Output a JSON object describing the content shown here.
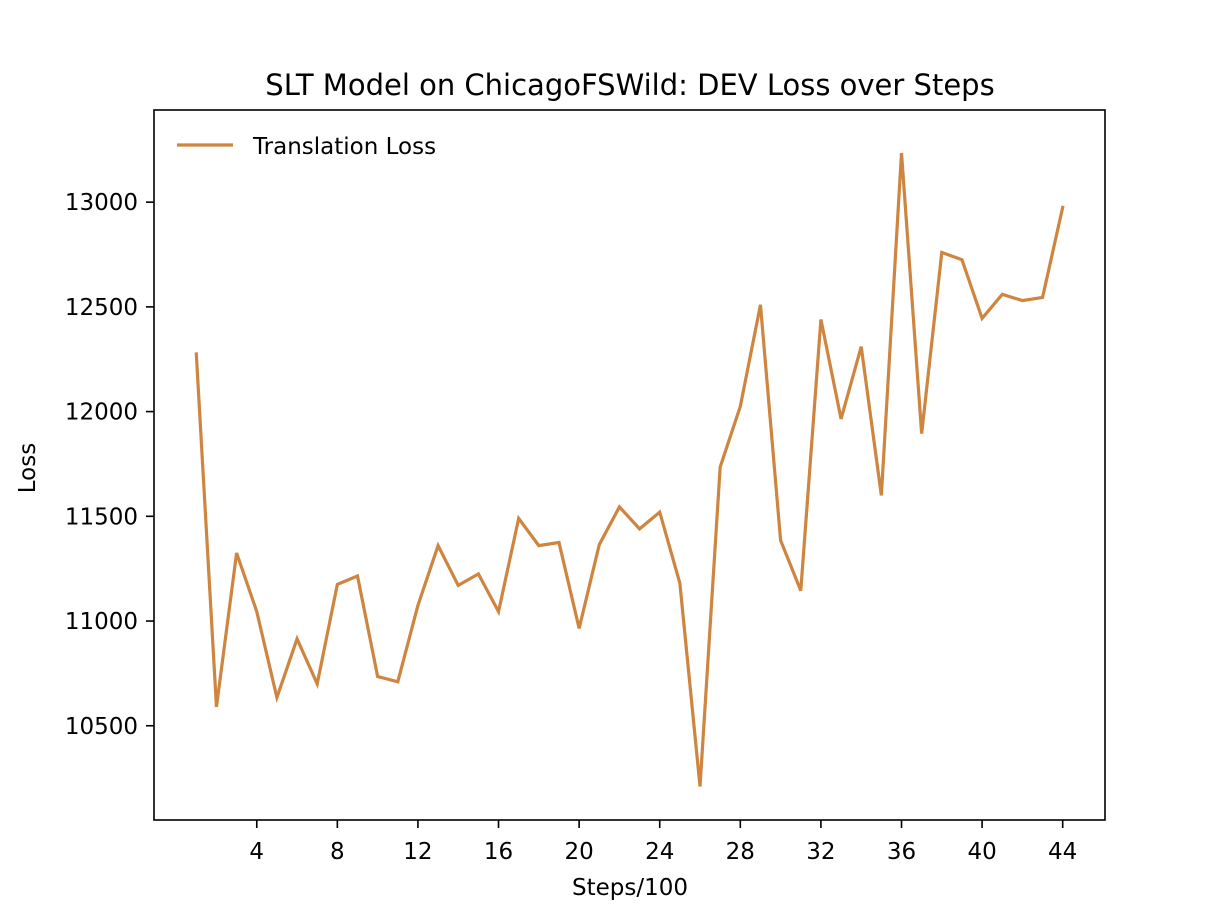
{
  "chart_data": {
    "type": "line",
    "title": "SLT Model on ChicagoFSWild: DEV Loss over Steps",
    "xlabel": "Steps/100",
    "ylabel": "Loss",
    "xlim": [
      -1.1,
      46.1
    ],
    "ylim": [
      10050,
      13440
    ],
    "xticks": [
      4,
      8,
      12,
      16,
      20,
      24,
      28,
      32,
      36,
      40,
      44
    ],
    "yticks": [
      10500,
      11000,
      11500,
      12000,
      12500,
      13000
    ],
    "grid": false,
    "legend_position": "top-left",
    "series": [
      {
        "name": "Translation Loss",
        "color": "#cd853f",
        "x": [
          1,
          2,
          3,
          4,
          5,
          6,
          7,
          8,
          9,
          10,
          11,
          12,
          13,
          14,
          15,
          16,
          17,
          18,
          19,
          20,
          21,
          22,
          23,
          24,
          25,
          26,
          27,
          28,
          29,
          30,
          31,
          32,
          33,
          34,
          35,
          36,
          37,
          38,
          39,
          40,
          41,
          42,
          43,
          44
        ],
        "values": [
          12275,
          10590,
          11325,
          11045,
          10635,
          10915,
          10700,
          11175,
          11215,
          10735,
          10710,
          11075,
          11360,
          11170,
          11225,
          11045,
          11490,
          11360,
          11375,
          10965,
          11365,
          11545,
          11440,
          11520,
          11180,
          10210,
          11735,
          12025,
          12510,
          11385,
          11145,
          12440,
          11965,
          12310,
          11600,
          13235,
          11895,
          12760,
          12725,
          12445,
          12560,
          12530,
          12545,
          12975
        ]
      }
    ]
  }
}
